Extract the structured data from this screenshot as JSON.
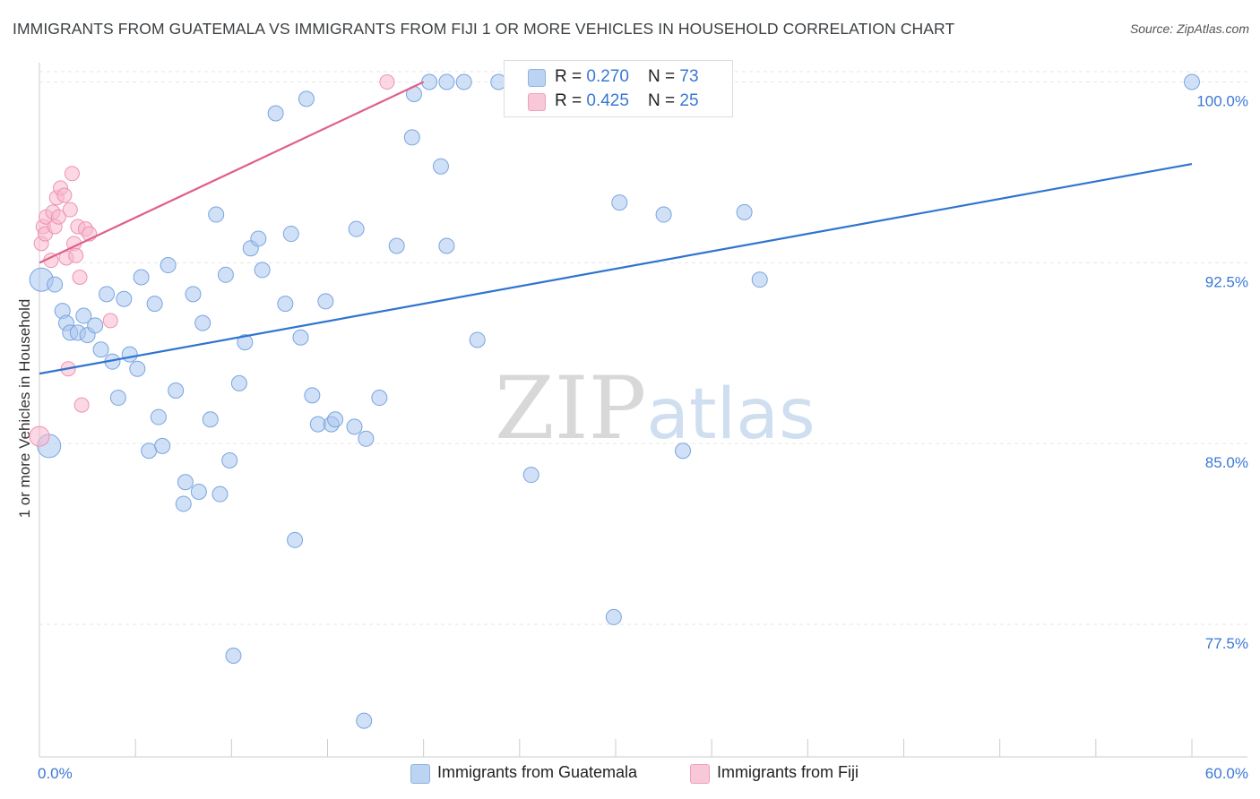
{
  "header": {
    "title": "IMMIGRANTS FROM GUATEMALA VS IMMIGRANTS FROM FIJI 1 OR MORE VEHICLES IN HOUSEHOLD CORRELATION CHART",
    "source": "Source: ZipAtlas.com"
  },
  "watermark": {
    "zip": "ZIP",
    "atlas": "atlas"
  },
  "legend": {
    "rows": [
      {
        "r_label": "R = ",
        "r_value": "0.270",
        "n_label": "N = ",
        "n_value": "73"
      },
      {
        "r_label": "R = ",
        "r_value": "0.425",
        "n_label": "N = ",
        "n_value": "25"
      }
    ]
  },
  "chart_data": {
    "type": "scatter",
    "title": "IMMIGRANTS FROM GUATEMALA VS IMMIGRANTS FROM FIJI 1 OR MORE VEHICLES IN HOUSEHOLD CORRELATION CHART",
    "xlabel": "",
    "ylabel": "1 or more Vehicles in Household",
    "xlim": [
      0,
      60
    ],
    "ylim": [
      72,
      100.8
    ],
    "x_tick_labels": [
      "0.0%",
      "60.0%"
    ],
    "y_ticks": [
      100,
      92.5,
      85,
      77.5
    ],
    "y_tick_labels": [
      "100.0%",
      "92.5%",
      "85.0%",
      "77.5%"
    ],
    "grid": true,
    "colors": {
      "guatemala_fill": "#a9c7ee",
      "guatemala_line": "#2f74d0",
      "fiji_fill": "#f7b8cc",
      "fiji_line": "#e0608a",
      "tick_label": "#3a78d4"
    },
    "series": [
      {
        "name": "Immigrants from Guatemala",
        "r": 0.27,
        "n": 73,
        "trend": {
          "x": [
            0,
            60
          ],
          "y": [
            87.9,
            96.6
          ]
        },
        "points": [
          [
            0.1,
            91.8
          ],
          [
            0.5,
            84.9
          ],
          [
            0.8,
            91.6
          ],
          [
            1.2,
            90.5
          ],
          [
            1.4,
            90.0
          ],
          [
            1.6,
            89.6
          ],
          [
            2.0,
            89.6
          ],
          [
            2.3,
            90.3
          ],
          [
            2.5,
            89.5
          ],
          [
            2.9,
            89.9
          ],
          [
            3.2,
            88.9
          ],
          [
            3.5,
            91.2
          ],
          [
            3.8,
            88.4
          ],
          [
            4.1,
            86.9
          ],
          [
            4.4,
            91.0
          ],
          [
            4.7,
            88.7
          ],
          [
            5.1,
            88.1
          ],
          [
            5.3,
            91.9
          ],
          [
            5.7,
            84.7
          ],
          [
            6.0,
            90.8
          ],
          [
            6.2,
            86.1
          ],
          [
            6.4,
            84.9
          ],
          [
            6.7,
            92.4
          ],
          [
            7.1,
            87.2
          ],
          [
            7.5,
            82.5
          ],
          [
            7.6,
            83.4
          ],
          [
            8.0,
            91.2
          ],
          [
            8.3,
            83.0
          ],
          [
            8.5,
            90.0
          ],
          [
            8.9,
            86.0
          ],
          [
            9.2,
            94.5
          ],
          [
            9.4,
            82.9
          ],
          [
            9.7,
            92.0
          ],
          [
            9.9,
            84.3
          ],
          [
            10.1,
            76.2
          ],
          [
            10.4,
            87.5
          ],
          [
            10.7,
            89.2
          ],
          [
            11.0,
            93.1
          ],
          [
            11.4,
            93.5
          ],
          [
            11.6,
            92.2
          ],
          [
            12.3,
            98.7
          ],
          [
            12.8,
            90.8
          ],
          [
            13.1,
            93.7
          ],
          [
            13.3,
            81.0
          ],
          [
            13.6,
            89.4
          ],
          [
            13.9,
            99.3
          ],
          [
            14.2,
            87.0
          ],
          [
            14.5,
            85.8
          ],
          [
            14.9,
            90.9
          ],
          [
            15.2,
            85.8
          ],
          [
            15.4,
            86.0
          ],
          [
            16.4,
            85.7
          ],
          [
            16.5,
            93.9
          ],
          [
            16.9,
            73.5
          ],
          [
            17.0,
            85.2
          ],
          [
            17.7,
            86.9
          ],
          [
            18.6,
            93.2
          ],
          [
            19.4,
            97.7
          ],
          [
            19.5,
            99.5
          ],
          [
            20.3,
            100.0
          ],
          [
            20.9,
            96.5
          ],
          [
            21.2,
            93.2
          ],
          [
            21.2,
            100.0
          ],
          [
            22.1,
            100.0
          ],
          [
            22.8,
            89.3
          ],
          [
            23.9,
            100.0
          ],
          [
            25.6,
            83.7
          ],
          [
            29.9,
            77.8
          ],
          [
            30.2,
            95.0
          ],
          [
            32.5,
            94.5
          ],
          [
            33.5,
            84.7
          ],
          [
            36.7,
            94.6
          ],
          [
            37.5,
            91.8
          ],
          [
            60.0,
            100.0
          ]
        ]
      },
      {
        "name": "Immigrants from Fiji",
        "r": 0.425,
        "n": 25,
        "trend": {
          "x": [
            0,
            20
          ],
          "y": [
            92.5,
            100.0
          ]
        },
        "points": [
          [
            0.0,
            85.3
          ],
          [
            0.1,
            93.3
          ],
          [
            0.2,
            94.0
          ],
          [
            0.3,
            93.7
          ],
          [
            0.35,
            94.4
          ],
          [
            0.6,
            92.6
          ],
          [
            0.7,
            94.6
          ],
          [
            0.8,
            94.0
          ],
          [
            0.9,
            95.2
          ],
          [
            1.0,
            94.4
          ],
          [
            1.1,
            95.6
          ],
          [
            1.3,
            95.3
          ],
          [
            1.4,
            92.7
          ],
          [
            1.5,
            88.1
          ],
          [
            1.6,
            94.7
          ],
          [
            1.7,
            96.2
          ],
          [
            1.8,
            93.3
          ],
          [
            1.9,
            92.8
          ],
          [
            2.0,
            94.0
          ],
          [
            2.1,
            91.9
          ],
          [
            2.2,
            86.6
          ],
          [
            2.4,
            93.9
          ],
          [
            2.6,
            93.7
          ],
          [
            3.7,
            90.1
          ],
          [
            18.1,
            100.0
          ]
        ]
      }
    ]
  },
  "bottom_legend": {
    "items": [
      {
        "label": "Immigrants from Guatemala"
      },
      {
        "label": "Immigrants from Fiji"
      }
    ]
  }
}
